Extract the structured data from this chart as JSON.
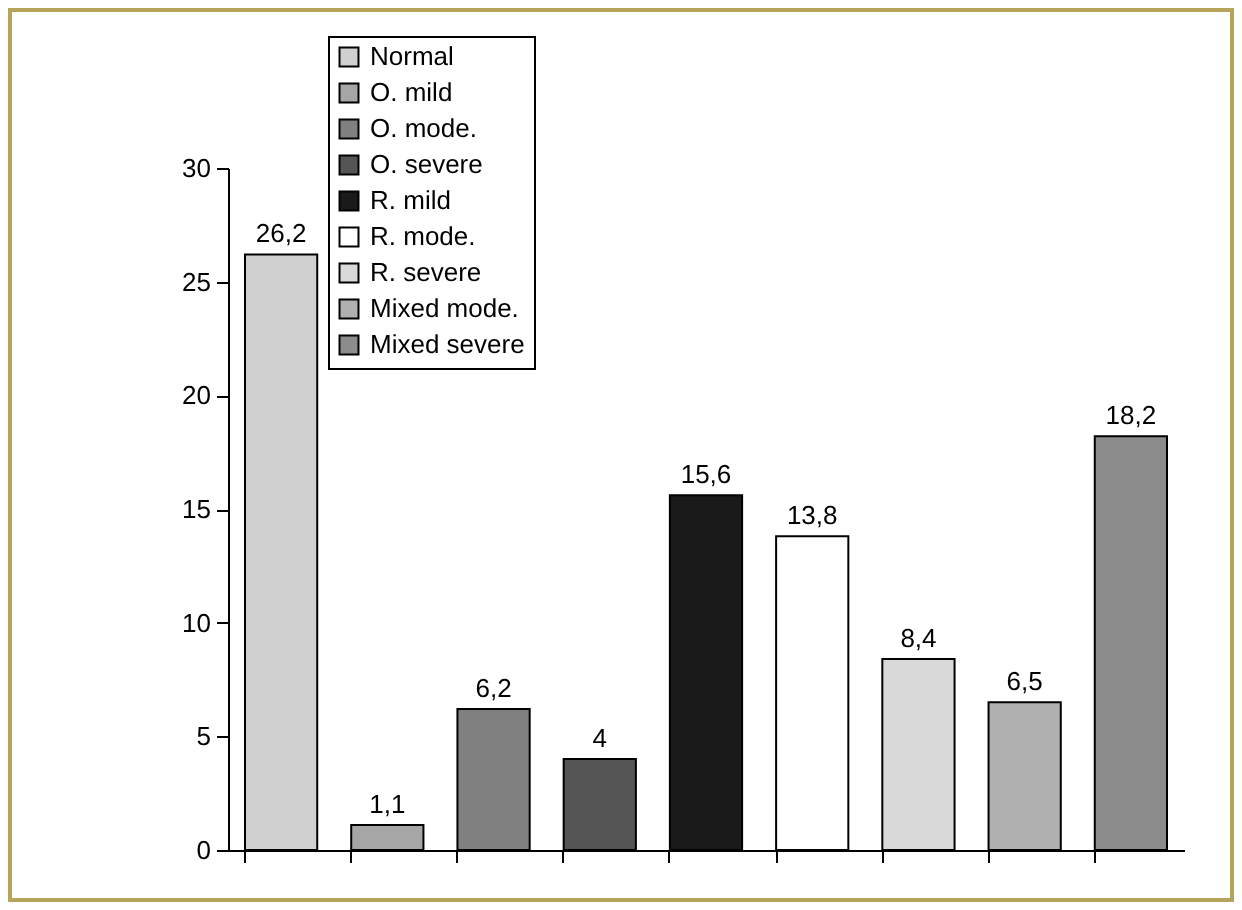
{
  "chart_data": {
    "type": "bar",
    "categories": [
      null,
      null,
      null,
      null,
      null,
      null,
      null,
      null,
      null
    ],
    "series": [
      {
        "name": "Normal",
        "color": "#d0d0d0",
        "values": [
          26.2,
          null,
          null,
          null,
          null,
          null,
          null,
          null,
          null
        ],
        "value_labels": [
          "26,2",
          null,
          null,
          null,
          null,
          null,
          null,
          null,
          null
        ]
      },
      {
        "name": "O. mild",
        "color": "#a6a6a6",
        "values": [
          null,
          1.1,
          null,
          null,
          null,
          null,
          null,
          null,
          null
        ],
        "value_labels": [
          null,
          "1,1",
          null,
          null,
          null,
          null,
          null,
          null,
          null
        ]
      },
      {
        "name": "O. mode.",
        "color": "#808080",
        "values": [
          null,
          null,
          6.2,
          null,
          null,
          null,
          null,
          null,
          null
        ],
        "value_labels": [
          null,
          null,
          "6,2",
          null,
          null,
          null,
          null,
          null,
          null
        ]
      },
      {
        "name": "O. severe",
        "color": "#555555",
        "values": [
          null,
          null,
          null,
          4,
          null,
          null,
          null,
          null,
          null
        ],
        "value_labels": [
          null,
          null,
          null,
          "4",
          null,
          null,
          null,
          null,
          null
        ]
      },
      {
        "name": "R. mild",
        "color": "#1a1a1a",
        "values": [
          null,
          null,
          null,
          null,
          15.6,
          null,
          null,
          null,
          null
        ],
        "value_labels": [
          null,
          null,
          null,
          null,
          "15,6",
          null,
          null,
          null,
          null
        ]
      },
      {
        "name": "R. mode.",
        "color": "#ffffff",
        "values": [
          null,
          null,
          null,
          null,
          null,
          13.8,
          null,
          null,
          null
        ],
        "value_labels": [
          null,
          null,
          null,
          null,
          null,
          "13,8",
          null,
          null,
          null
        ]
      },
      {
        "name": "R. severe",
        "color": "#d9d9d9",
        "values": [
          null,
          null,
          null,
          null,
          null,
          null,
          8.4,
          null,
          null
        ],
        "value_labels": [
          null,
          null,
          null,
          null,
          null,
          null,
          "8,4",
          null,
          null
        ]
      },
      {
        "name": "Mixed mode.",
        "color": "#b0b0b0",
        "values": [
          null,
          null,
          null,
          null,
          null,
          null,
          null,
          6.5,
          null
        ],
        "value_labels": [
          null,
          null,
          null,
          null,
          null,
          null,
          null,
          "6,5",
          null
        ]
      },
      {
        "name": "Mixed severe",
        "color": "#8c8c8c",
        "values": [
          null,
          null,
          null,
          null,
          null,
          null,
          null,
          null,
          18.2
        ],
        "value_labels": [
          null,
          null,
          null,
          null,
          null,
          null,
          null,
          null,
          "18,2"
        ]
      }
    ],
    "ylim": [
      0,
      30
    ],
    "yticks": [
      0,
      5,
      10,
      15,
      20,
      25,
      30
    ],
    "legend": "top left",
    "tick_labels": "y"
  }
}
